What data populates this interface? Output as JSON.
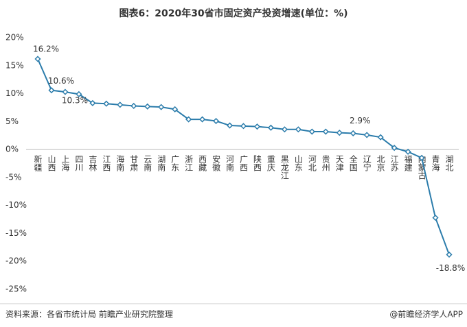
{
  "chart_data": {
    "type": "line",
    "title": "图表6：2020年30省市固定资产投资增速(单位：%)",
    "source": "资料来源：各省市统计局 前瞻产业研究院整理",
    "brand": "@前瞻经济学人APP",
    "categories": [
      "新疆",
      "山西",
      "上海",
      "四川",
      "吉林",
      "江西",
      "海南",
      "甘肃",
      "云南",
      "湖南",
      "广东",
      "浙江",
      "西藏",
      "安徽",
      "河南",
      "广西",
      "陕西",
      "重庆",
      "黑龙江",
      "山东",
      "河北",
      "贵州",
      "天津",
      "全国",
      "辽宁",
      "北京",
      "江苏",
      "福建",
      "内蒙古",
      "青海",
      "湖北"
    ],
    "series": [
      {
        "color": "#2b7cab",
        "values": [
          16.2,
          10.6,
          10.3,
          9.9,
          8.3,
          8.2,
          8.0,
          7.8,
          7.7,
          7.6,
          7.2,
          5.4,
          5.4,
          5.1,
          4.3,
          4.2,
          4.1,
          3.9,
          3.6,
          3.6,
          3.2,
          3.2,
          3.0,
          2.9,
          2.6,
          2.2,
          0.3,
          -0.4,
          -1.5,
          -12.2,
          -18.8
        ],
        "value_labels": [
          "16.2%",
          "10.6%",
          "10.3%",
          null,
          null,
          null,
          null,
          null,
          null,
          null,
          null,
          null,
          null,
          null,
          null,
          null,
          null,
          null,
          null,
          null,
          null,
          null,
          null,
          "2.9%",
          null,
          null,
          null,
          null,
          null,
          null,
          "-18.8%"
        ]
      }
    ],
    "ylim": [
      -25,
      20
    ],
    "yticks": [
      {
        "value": -25,
        "label": "-25%"
      },
      {
        "value": -20,
        "label": "-20%"
      },
      {
        "value": -15,
        "label": "-15%"
      },
      {
        "value": -10,
        "label": "-10%"
      },
      {
        "value": -5,
        "label": "-5%"
      },
      {
        "value": 0,
        "label": "0%"
      },
      {
        "value": 5,
        "label": "5%"
      },
      {
        "value": 10,
        "label": "10%"
      },
      {
        "value": 15,
        "label": "15%"
      },
      {
        "value": 20,
        "label": "20%"
      }
    ],
    "grid": false
  }
}
